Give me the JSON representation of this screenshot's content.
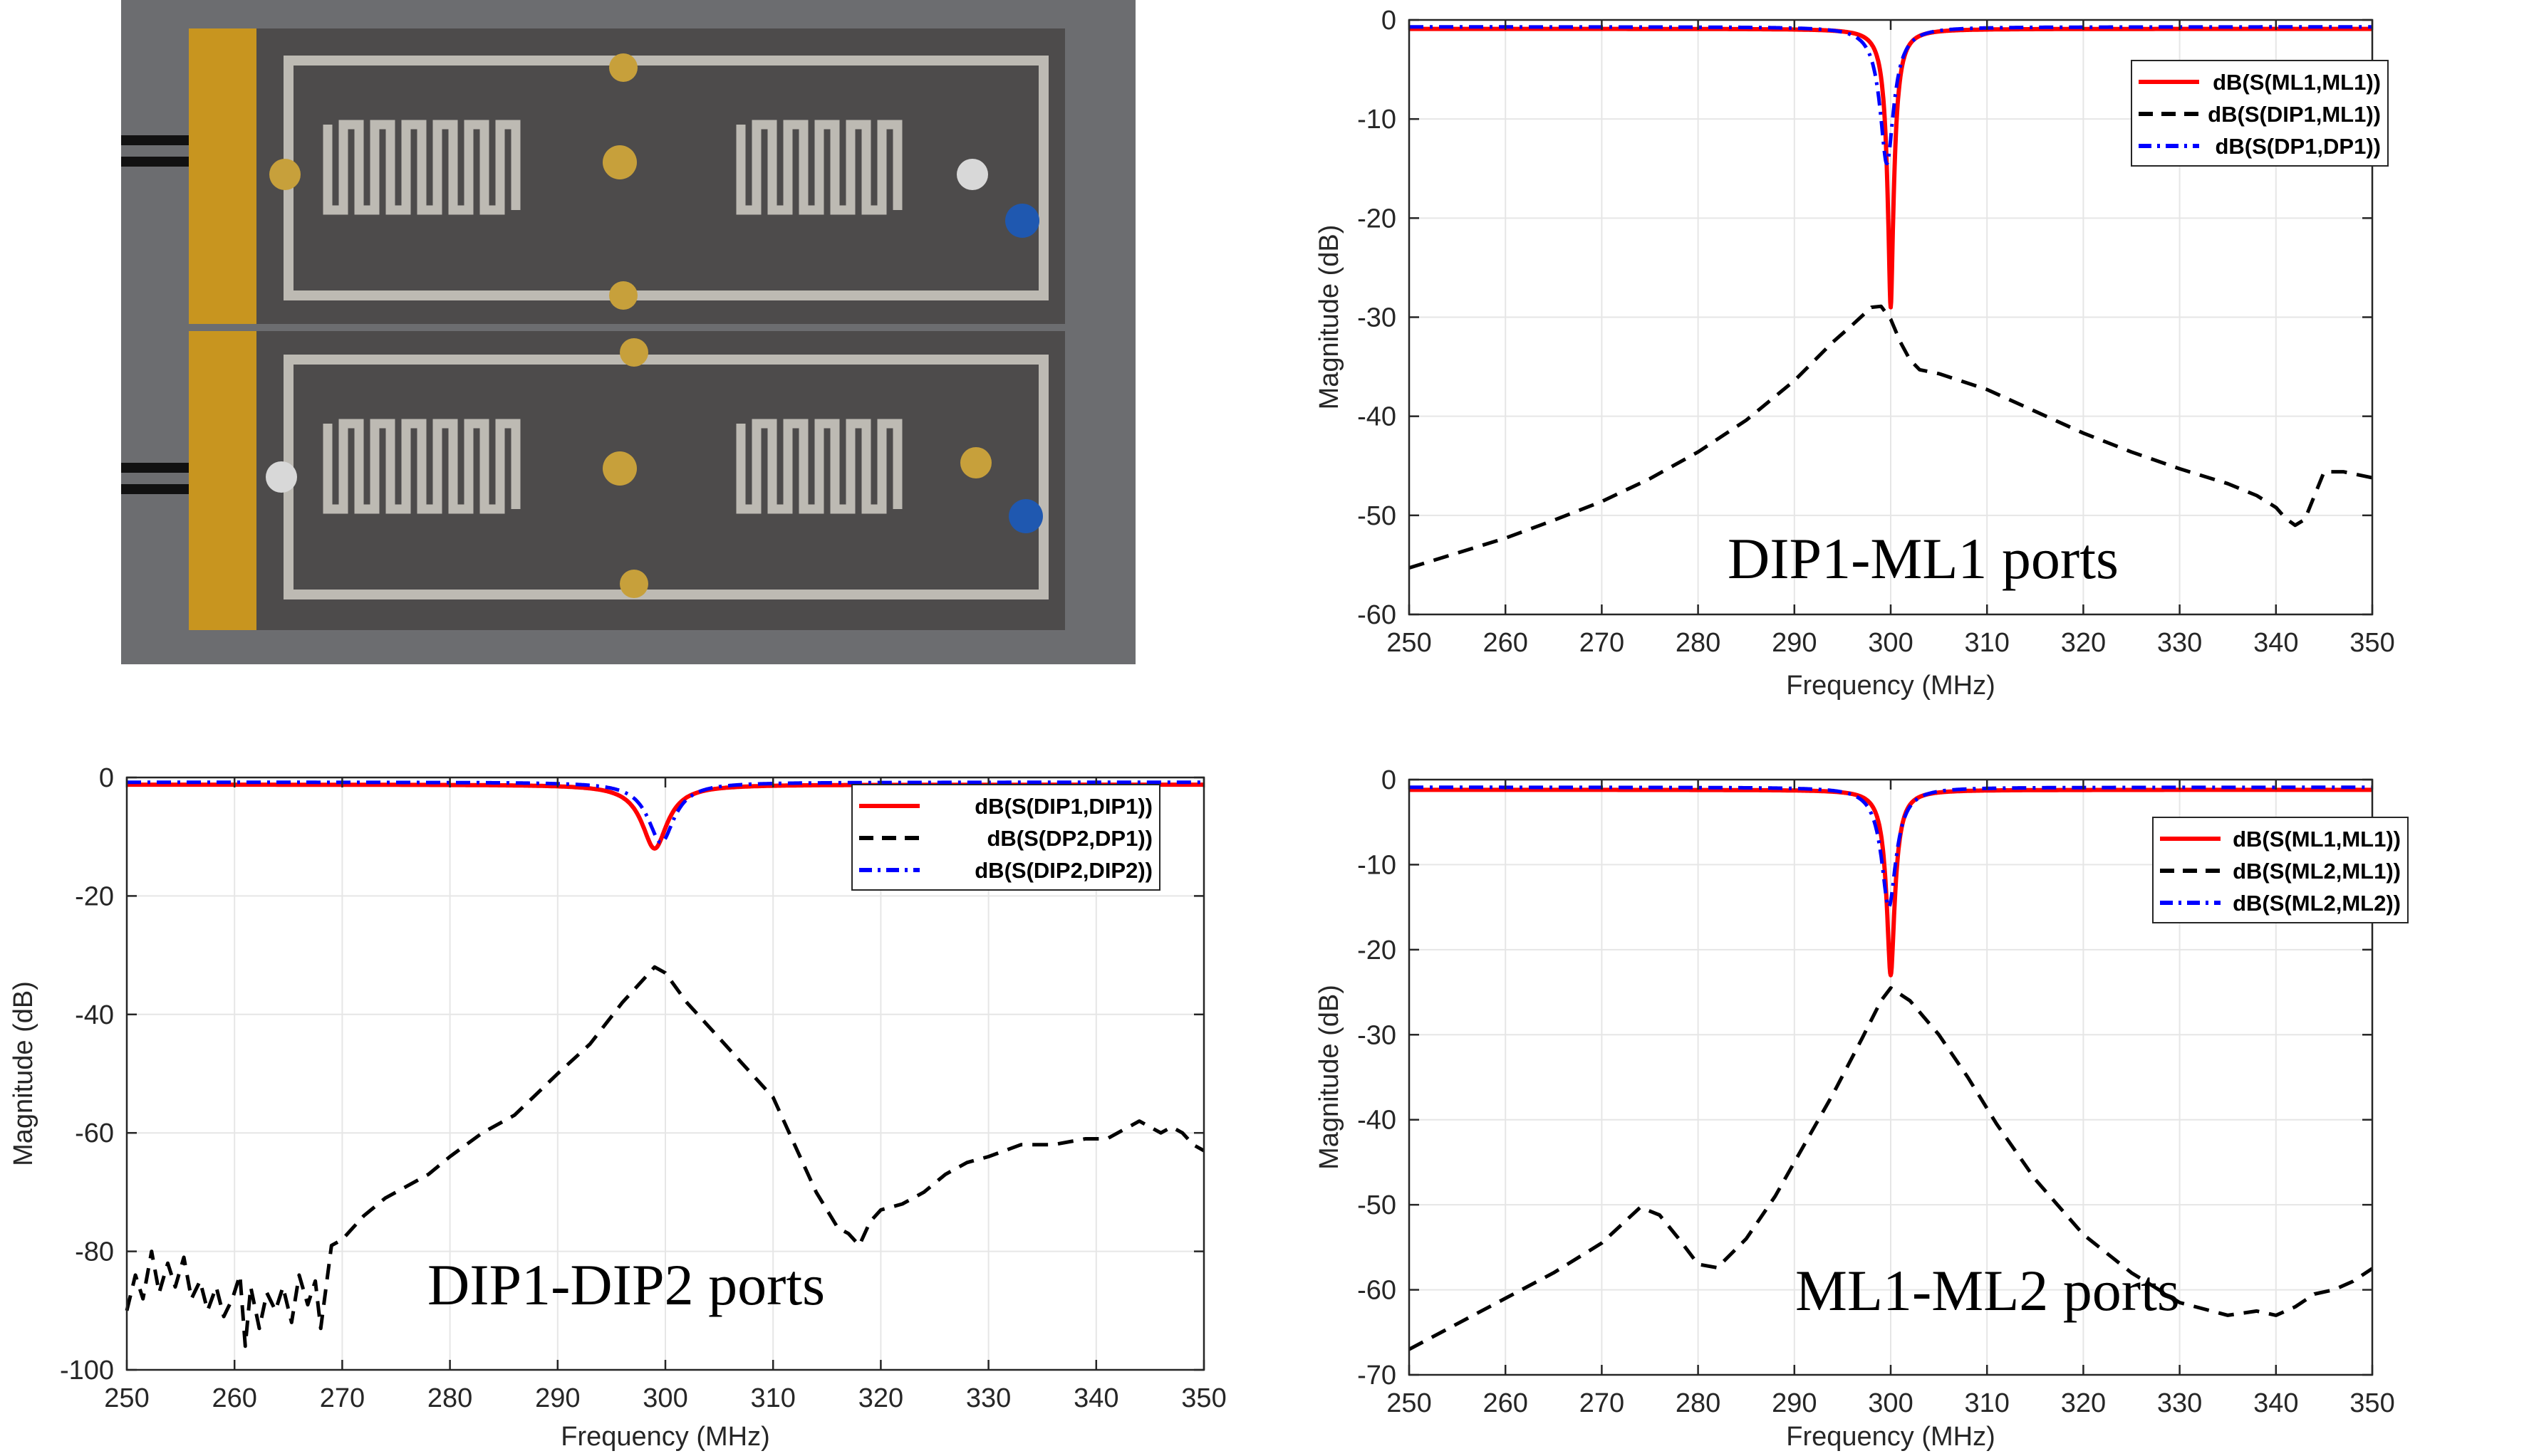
{
  "colors": {
    "red": "#ff0000",
    "black": "#000000",
    "blue": "#0000ff",
    "grid": "#e6e6e6",
    "axis": "#262626"
  },
  "photo": {
    "icon": "pcb-prototype-photo"
  },
  "chart_data": [
    {
      "type": "line",
      "id": "top-right",
      "xlabel": "Frequency (MHz)",
      "ylabel": "Magnitude (dB)",
      "xlim": [
        250,
        350
      ],
      "ylim": [
        -60,
        0
      ],
      "xticks": [
        250,
        260,
        270,
        280,
        290,
        300,
        310,
        320,
        330,
        340,
        350
      ],
      "yticks": [
        0,
        -10,
        -20,
        -30,
        -40,
        -50,
        -60
      ],
      "annotation": "DIP1-ML1 ports",
      "legend_position": "top-right",
      "series": [
        {
          "name": "dB(S(ML1,ML1))",
          "color": "#ff0000",
          "style": "solid",
          "f0": 300,
          "min": -29.0,
          "w": 0.9,
          "floor": -0.9
        },
        {
          "name": "dB(S(DIP1,ML1))",
          "color": "#000000",
          "style": "dashed",
          "x": [
            250,
            255,
            260,
            265,
            270,
            275,
            280,
            285,
            290,
            294,
            296,
            298,
            299,
            300,
            301,
            302,
            303,
            305,
            310,
            315,
            320,
            325,
            330,
            335,
            338,
            340,
            341,
            342,
            343,
            344,
            345,
            347,
            350
          ],
          "y": [
            -55.3,
            -53.8,
            -52.3,
            -50.5,
            -48.6,
            -46.3,
            -43.6,
            -40.4,
            -36.4,
            -32.5,
            -30.8,
            -29.0,
            -28.9,
            -30.2,
            -32.5,
            -34.3,
            -35.3,
            -35.7,
            -37.3,
            -39.5,
            -41.7,
            -43.6,
            -45.3,
            -46.8,
            -48.0,
            -49.2,
            -50.3,
            -51.0,
            -50.4,
            -48.0,
            -45.6,
            -45.6,
            -46.2
          ]
        },
        {
          "name": "dB(S(DP1,DP1))",
          "color": "#0000ff",
          "style": "dashdot",
          "f0": 299.6,
          "min": -14.5,
          "w": 1.3,
          "floor": -0.7
        }
      ]
    },
    {
      "type": "line",
      "id": "bottom-left",
      "xlabel": "Frequency (MHz)",
      "ylabel": "Magnitude (dB)",
      "xlim": [
        250,
        350
      ],
      "ylim": [
        -100,
        0
      ],
      "xticks": [
        250,
        260,
        270,
        280,
        290,
        300,
        310,
        320,
        330,
        340,
        350
      ],
      "yticks": [
        0,
        -20,
        -40,
        -60,
        -80,
        -100
      ],
      "annotation": "DIP1-DIP2 ports",
      "legend_position": "top-right",
      "series": [
        {
          "name": "dB(S(DIP1,DIP1))",
          "color": "#ff0000",
          "style": "solid",
          "f0": 299,
          "min": -12.0,
          "w": 2.0,
          "floor": -1.2
        },
        {
          "name": "dB(S(DP2,DP1))",
          "color": "#000000",
          "style": "dashed",
          "x": [
            250,
            250.8,
            251.5,
            252.3,
            253,
            253.8,
            254.5,
            255.3,
            256,
            256.8,
            257.5,
            258.3,
            259,
            259.8,
            260.5,
            261,
            261.5,
            262.3,
            263,
            263.8,
            264.5,
            265.3,
            266,
            266.8,
            267.5,
            268,
            269,
            270,
            272,
            274,
            276,
            278,
            280,
            283,
            286,
            290,
            293,
            296,
            298,
            299,
            300,
            302,
            304,
            307,
            310,
            312,
            314,
            316,
            317,
            318,
            319,
            320,
            322,
            324,
            326,
            328,
            330,
            333,
            336,
            339,
            341,
            342,
            343,
            344,
            345,
            346,
            347,
            348,
            349,
            350
          ],
          "y": [
            -90,
            -84,
            -88,
            -80,
            -87,
            -82,
            -86,
            -81,
            -88,
            -85,
            -90,
            -86,
            -91,
            -88,
            -84,
            -96,
            -86,
            -93,
            -87,
            -90,
            -86,
            -92,
            -84,
            -89,
            -85,
            -93,
            -79,
            -78,
            -74,
            -71,
            -69,
            -67,
            -64,
            -60,
            -57,
            -50,
            -45,
            -38,
            -34,
            -32,
            -33,
            -38,
            -42,
            -48,
            -54,
            -62,
            -70,
            -76,
            -77,
            -79,
            -75,
            -73,
            -72,
            -70,
            -67,
            -65,
            -64,
            -62,
            -62,
            -61,
            -61,
            -60,
            -59,
            -58,
            -59,
            -60,
            -59,
            -60,
            -62,
            -63
          ]
        },
        {
          "name": "dB(S(DIP2,DIP2))",
          "color": "#0000ff",
          "style": "dashdot",
          "f0": 299.6,
          "min": -11.0,
          "w": 2.0,
          "floor": -0.8
        }
      ]
    },
    {
      "type": "line",
      "id": "bottom-right",
      "xlabel": "Frequency (MHz)",
      "ylabel": "Magnitude (dB)",
      "xlim": [
        250,
        350
      ],
      "ylim": [
        -70,
        0
      ],
      "xticks": [
        250,
        260,
        270,
        280,
        290,
        300,
        310,
        320,
        330,
        340,
        350
      ],
      "yticks": [
        0,
        -10,
        -20,
        -30,
        -40,
        -50,
        -60,
        -70
      ],
      "annotation": "ML1-ML2 ports",
      "legend_position": "top-right",
      "series": [
        {
          "name": "dB(S(ML1,ML1))",
          "color": "#ff0000",
          "style": "solid",
          "f0": 300,
          "min": -23.0,
          "w": 1.0,
          "floor": -1.2
        },
        {
          "name": "dB(S(ML2,ML1))",
          "color": "#000000",
          "style": "dashed",
          "x": [
            250,
            255,
            260,
            265,
            270,
            274,
            276,
            278,
            280,
            282,
            285,
            288,
            291,
            294,
            297,
            299,
            300,
            302,
            305,
            308,
            311,
            315,
            320,
            325,
            330,
            335,
            338,
            340,
            342,
            344,
            346,
            348,
            350
          ],
          "y": [
            -67,
            -64,
            -61,
            -58,
            -54.5,
            -50.3,
            -51.2,
            -54.0,
            -57.0,
            -57.4,
            -54.0,
            -49.0,
            -43.0,
            -37.0,
            -30.5,
            -26.0,
            -24.5,
            -26.0,
            -30.0,
            -35.0,
            -40.5,
            -47.0,
            -53.5,
            -58.0,
            -61.5,
            -63.0,
            -62.5,
            -63.0,
            -62.0,
            -60.5,
            -60.0,
            -59.0,
            -57.5
          ]
        },
        {
          "name": "dB(S(ML2,ML2))",
          "color": "#0000ff",
          "style": "dashdot",
          "f0": 299.8,
          "min": -15.0,
          "w": 1.4,
          "floor": -0.9
        }
      ]
    }
  ]
}
